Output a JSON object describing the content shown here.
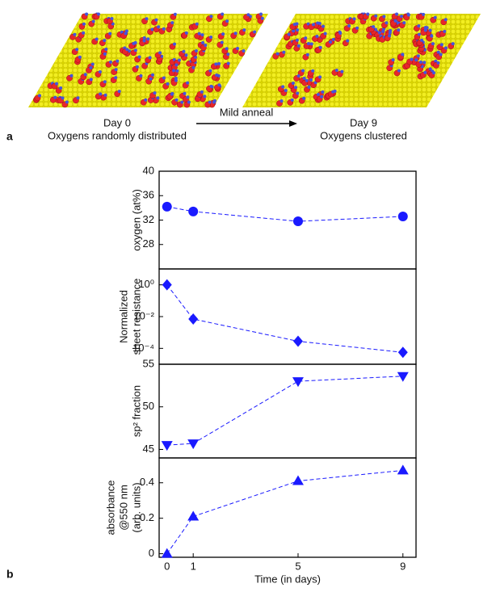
{
  "figure_a": {
    "panel_label": "a",
    "left_caption": [
      "Day 0",
      "Oxygens randomly distributed"
    ],
    "arrow_label": "Mild anneal",
    "right_caption": [
      "Day 9",
      "Oxygens clustered"
    ]
  },
  "panel_b_label": "b",
  "chart_data": [
    {
      "type": "line",
      "ylabel": [
        "oxygen (at%)"
      ],
      "x": [
        0,
        1,
        5,
        9
      ],
      "xlim": [
        -0.3,
        9.5
      ],
      "ylim": [
        24,
        40
      ],
      "yticks": [
        28,
        32,
        36,
        40
      ],
      "series": [
        {
          "color": "#1a1aff",
          "marker": "circle",
          "values": [
            34.2,
            33.4,
            31.8,
            32.6
          ]
        }
      ]
    },
    {
      "type": "line",
      "ylabel": [
        "Normalized",
        "sheet resistance"
      ],
      "x": [
        0,
        1,
        5,
        9
      ],
      "xlim": [
        -0.3,
        9.5
      ],
      "ylim": [
        1e-05,
        10
      ],
      "log_scale": true,
      "yticks": [
        {
          "value": 1,
          "label": "10⁰"
        },
        {
          "value": 0.01,
          "label": "10⁻²"
        },
        {
          "value": 0.0001,
          "label": "10⁻⁴"
        }
      ],
      "series": [
        {
          "color": "#1a1aff",
          "marker": "diamond",
          "values": [
            1,
            0.007,
            0.00028,
            5.6e-05
          ]
        }
      ]
    },
    {
      "type": "line",
      "ylabel": [
        "sp² fraction"
      ],
      "x": [
        0,
        1,
        5,
        9
      ],
      "xlim": [
        -0.3,
        9.5
      ],
      "ylim": [
        44,
        55
      ],
      "yticks": [
        45,
        50,
        55
      ],
      "series": [
        {
          "color": "#1a1aff",
          "marker": "triangle-down",
          "values": [
            45.5,
            45.7,
            53.0,
            53.6
          ]
        }
      ]
    },
    {
      "type": "line",
      "ylabel": [
        "absorbance",
        "@550 nm",
        "(arb. units)"
      ],
      "x": [
        0,
        1,
        5,
        9
      ],
      "xlim": [
        -0.3,
        9.5
      ],
      "ylim": [
        -0.02,
        0.54
      ],
      "yticks": [
        0,
        0.2,
        0.4
      ],
      "xticks": [
        0,
        1,
        5,
        9
      ],
      "xlabel": "Time (in days)",
      "series": [
        {
          "color": "#1a1aff",
          "marker": "triangle-up",
          "values": [
            0,
            0.21,
            0.41,
            0.47
          ]
        }
      ]
    }
  ]
}
